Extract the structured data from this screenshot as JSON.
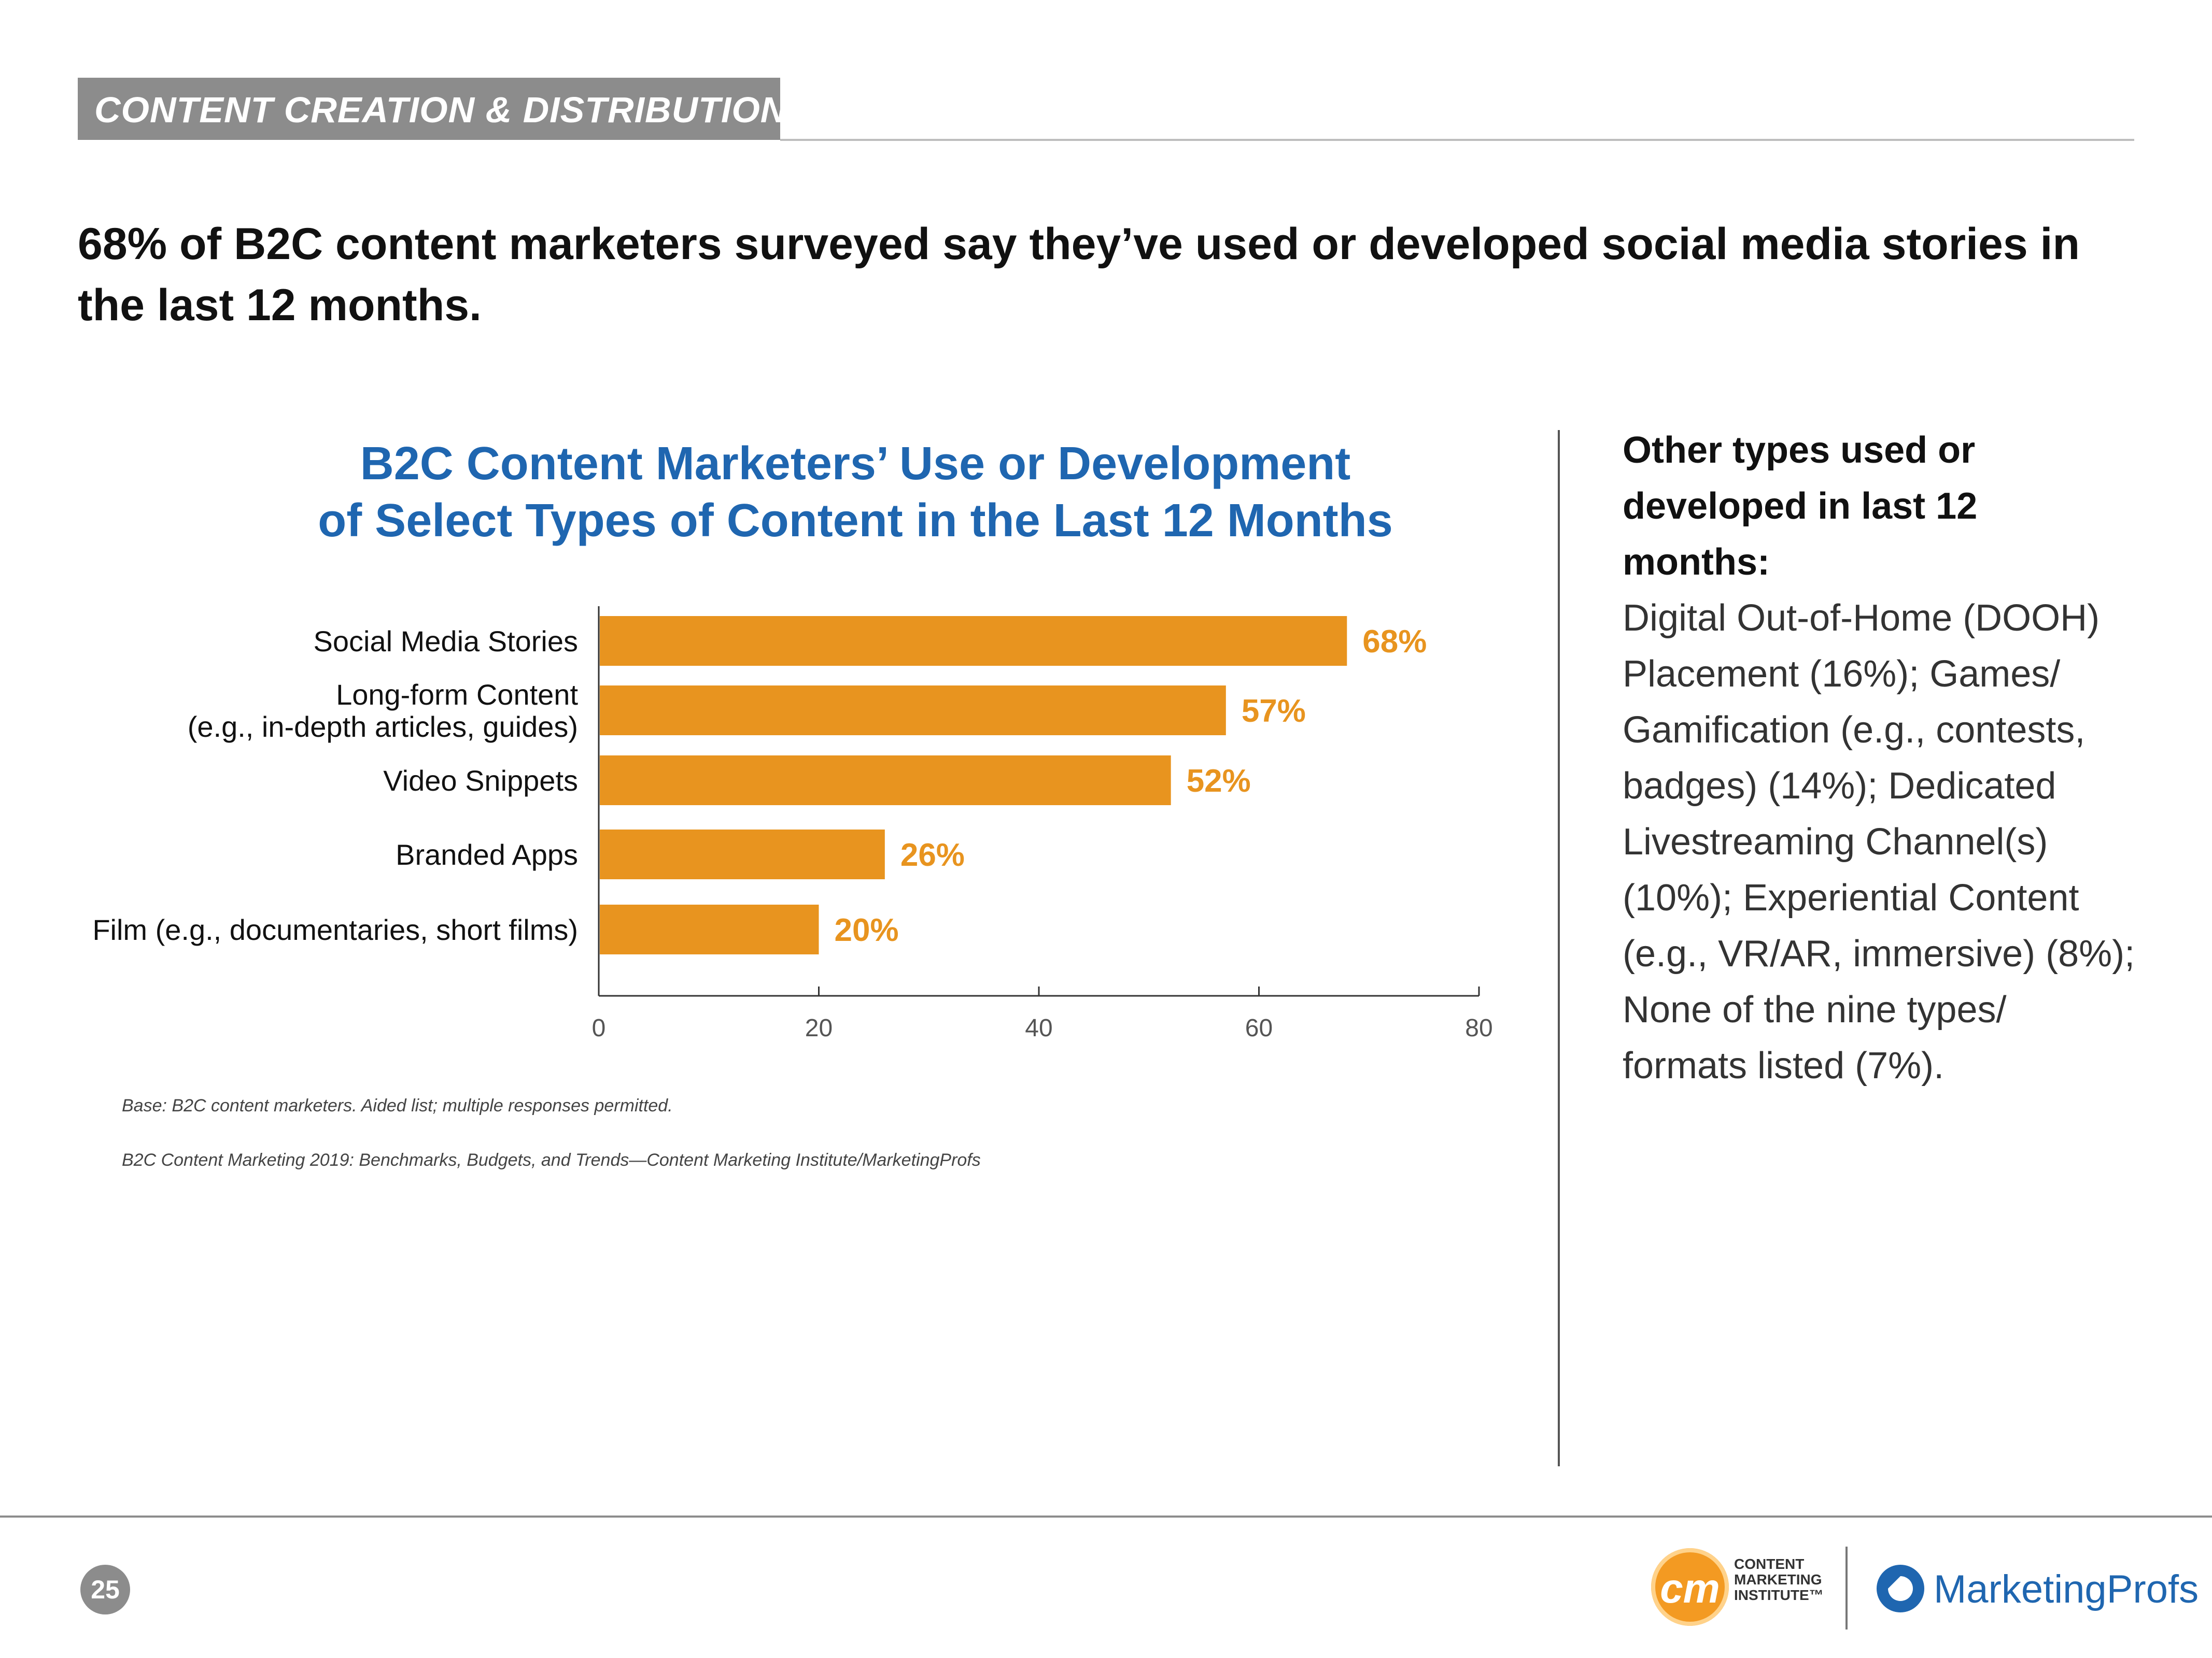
{
  "header": {
    "section_label": "CONTENT CREATION & DISTRIBUTION",
    "headline": "68% of B2C content marketers surveyed say they’ve used or developed social media stories in the last 12 months."
  },
  "chart_data": {
    "type": "bar",
    "orientation": "horizontal",
    "title": "B2C Content Marketers’ Use or Development of Select Types of Content in the Last 12 Months",
    "title_lines": [
      "B2C Content Marketers’ Use or Development",
      "of Select Types of Content in the Last 12 Months"
    ],
    "categories": [
      [
        "Social Media Stories"
      ],
      [
        "Long-form Content",
        "(e.g., in-depth articles, guides)"
      ],
      [
        "Video Snippets"
      ],
      [
        "Branded Apps"
      ],
      [
        "Film (e.g., documentaries, short films)"
      ]
    ],
    "values": [
      68,
      57,
      52,
      26,
      20
    ],
    "value_labels": [
      "68%",
      "57%",
      "52%",
      "26%",
      "20%"
    ],
    "xlim": [
      0,
      80
    ],
    "xticks": [
      "0",
      "20",
      "40",
      "60",
      "80"
    ],
    "xlabel": "",
    "ylabel": "",
    "bar_color": "#e8941f",
    "grid": false
  },
  "notes": {
    "base": "Base: B2C content marketers. Aided list; multiple responses permitted.",
    "source": "B2C Content Marketing 2019: Benchmarks, Budgets, and Trends—Content Marketing Institute/MarketingProfs"
  },
  "side_panel": {
    "heading_lines": [
      "Other types used or",
      "developed in last 12",
      "months:"
    ],
    "body_lines": [
      "Digital Out-of-Home (DOOH)",
      "Placement (16%); Games/",
      "Gamification (e.g., contests,",
      "badges) (14%); Dedicated",
      "Livestreaming Channel(s)",
      "(10%); Experiential Content",
      "(e.g., VR/AR, immersive) (8%);",
      "None of the nine types/",
      "formats listed (7%)."
    ]
  },
  "footer": {
    "page_number": "25",
    "cmi_logo_mark": "cm",
    "cmi_logo_text": "CONTENT\nMARKETING\nINSTITUTE™",
    "mp_logo_text": "MarketingProfs"
  },
  "colors": {
    "accent_blue": "#1f66b0",
    "bar_orange": "#e8941f",
    "tab_gray": "#8c8c8c"
  }
}
